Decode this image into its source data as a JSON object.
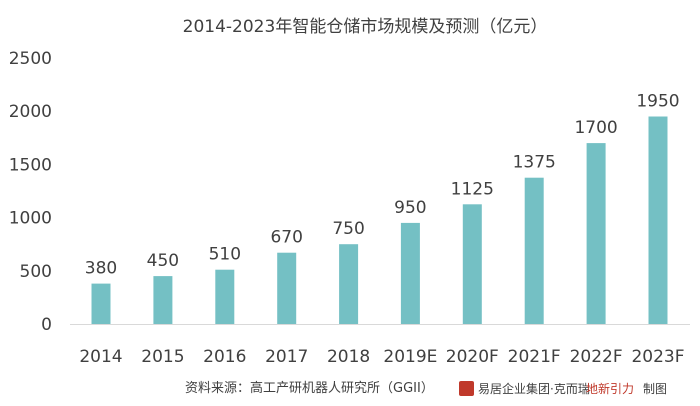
{
  "chart_data": {
    "type": "bar",
    "title": "2014-2023年智能仓储市场规模及预测（亿元）",
    "categories": [
      "2014",
      "2015",
      "2016",
      "2017",
      "2018",
      "2019E",
      "2020F",
      "2021F",
      "2022F",
      "2023F"
    ],
    "values": [
      380,
      450,
      510,
      670,
      750,
      950,
      1125,
      1375,
      1700,
      1950
    ],
    "data_labels": [
      "380",
      "450",
      "510",
      "670",
      "750",
      "950",
      "1125",
      "1375",
      "1700",
      "1950"
    ],
    "yticks": [
      "0",
      "500",
      "1000",
      "1500",
      "2000",
      "2500"
    ],
    "ylim": [
      0,
      2500
    ],
    "xlabel": "",
    "ylabel": "",
    "grid": false,
    "bar_color": "#74c0c4"
  },
  "footer": {
    "source": "资料来源：高工产研机器人研究所（GGII）",
    "credit_brand": "易居企业集团·克而瑞",
    "credit_suffix": "地新引力",
    "credit_tail": "制图"
  }
}
